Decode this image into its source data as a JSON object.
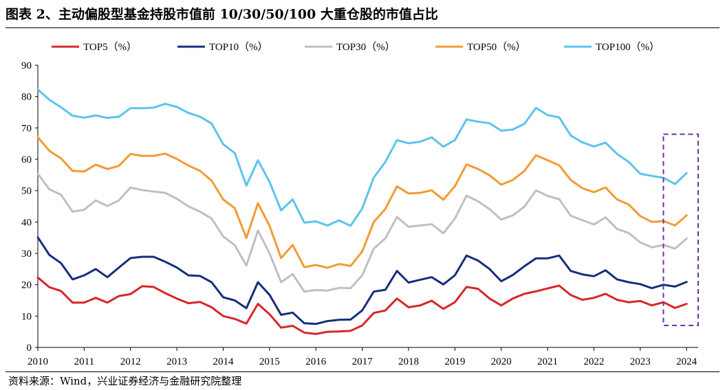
{
  "figure": {
    "title": "图表 2、主动偏股型基金持股市值前 10/30/50/100 大重仓股的市值占比",
    "source": "资料来源：Wind，兴业证券经济与金融研究院整理"
  },
  "chart_data": {
    "type": "line",
    "title": "",
    "xlabel": "",
    "ylabel": "",
    "ylim": [
      0,
      90
    ],
    "yticks": [
      0,
      10,
      20,
      30,
      40,
      50,
      60,
      70,
      80,
      90
    ],
    "xlim": [
      2010,
      2024.25
    ],
    "xticks": [
      "2010",
      "2011",
      "2012",
      "2013",
      "2014",
      "2015",
      "2016",
      "2017",
      "2018",
      "2019",
      "2020",
      "2021",
      "2022",
      "2023",
      "2024"
    ],
    "grid": false,
    "legend_position": "top",
    "highlight_box": {
      "x_from": 2023.5,
      "x_to": 2024.25,
      "y_from": 7,
      "y_to": 68,
      "color": "#7030A0",
      "style": "dashed"
    },
    "x": [
      2010.0,
      2010.25,
      2010.5,
      2010.75,
      2011.0,
      2011.25,
      2011.5,
      2011.75,
      2012.0,
      2012.25,
      2012.5,
      2012.75,
      2013.0,
      2013.25,
      2013.5,
      2013.75,
      2014.0,
      2014.25,
      2014.5,
      2014.75,
      2015.0,
      2015.25,
      2015.5,
      2015.75,
      2016.0,
      2016.25,
      2016.5,
      2016.75,
      2017.0,
      2017.25,
      2017.5,
      2017.75,
      2018.0,
      2018.25,
      2018.5,
      2018.75,
      2019.0,
      2019.25,
      2019.5,
      2019.75,
      2020.0,
      2020.25,
      2020.5,
      2020.75,
      2021.0,
      2021.25,
      2021.5,
      2021.75,
      2022.0,
      2022.25,
      2022.5,
      2022.75,
      2023.0,
      2023.25,
      2023.5,
      2023.75,
      2024.0
    ],
    "series": [
      {
        "name": "TOP5（%）",
        "color": "#D9252A",
        "values": [
          22.3,
          19.2,
          18.0,
          14.3,
          14.3,
          15.8,
          14.3,
          16.4,
          17.0,
          19.5,
          19.3,
          17.3,
          15.6,
          14.1,
          14.5,
          12.8,
          10.0,
          9.1,
          7.6,
          13.9,
          10.6,
          6.3,
          6.9,
          4.7,
          4.3,
          5.0,
          5.1,
          5.3,
          7.0,
          11.0,
          11.8,
          15.6,
          12.8,
          13.4,
          14.9,
          12.3,
          14.4,
          19.3,
          18.7,
          15.6,
          13.4,
          15.6,
          17.1,
          17.9,
          18.8,
          19.7,
          16.7,
          15.2,
          15.8,
          17.1,
          15.2,
          14.4,
          14.8,
          13.4,
          14.4,
          12.6,
          13.9
        ]
      },
      {
        "name": "TOP10（%）",
        "color": "#142E7A",
        "values": [
          35.1,
          29.5,
          26.9,
          21.7,
          23.0,
          25.0,
          22.4,
          25.5,
          28.5,
          28.9,
          28.9,
          27.3,
          25.5,
          23.0,
          22.8,
          20.8,
          16.0,
          15.0,
          12.5,
          20.8,
          16.8,
          10.4,
          11.1,
          7.7,
          7.5,
          8.4,
          8.8,
          8.9,
          11.8,
          17.8,
          18.4,
          24.4,
          20.7,
          21.6,
          22.4,
          20.1,
          23.0,
          29.3,
          27.7,
          25.0,
          21.1,
          23.1,
          25.9,
          28.4,
          28.4,
          29.3,
          24.4,
          23.3,
          22.7,
          24.6,
          21.7,
          20.8,
          20.2,
          18.9,
          20.0,
          19.4,
          20.9
        ]
      },
      {
        "name": "TOP30（%）",
        "color": "#BFBFBF",
        "values": [
          55.4,
          50.4,
          48.7,
          43.3,
          43.9,
          46.9,
          45.1,
          46.9,
          51.0,
          50.2,
          49.7,
          49.3,
          47.4,
          45.0,
          43.3,
          41.1,
          35.4,
          32.6,
          26.1,
          37.3,
          30.0,
          20.8,
          23.4,
          17.8,
          18.3,
          18.1,
          19.0,
          18.9,
          23.0,
          31.5,
          34.8,
          41.6,
          38.5,
          38.9,
          39.3,
          36.4,
          41.1,
          48.4,
          46.6,
          44.1,
          40.8,
          42.1,
          44.9,
          50.1,
          48.3,
          47.3,
          42.0,
          40.6,
          39.2,
          41.5,
          37.8,
          36.5,
          33.5,
          31.9,
          32.7,
          31.5,
          34.7
        ]
      },
      {
        "name": "TOP50（%）",
        "color": "#F39A33",
        "values": [
          67.0,
          62.7,
          60.3,
          56.3,
          56.1,
          58.3,
          56.9,
          57.9,
          61.7,
          61.1,
          61.1,
          61.8,
          60.1,
          58.0,
          56.3,
          53.2,
          47.2,
          44.4,
          34.9,
          46.0,
          38.8,
          28.5,
          32.7,
          25.6,
          26.3,
          25.4,
          26.6,
          26.0,
          30.6,
          40.0,
          44.2,
          51.4,
          49.1,
          49.3,
          50.1,
          47.1,
          51.4,
          58.4,
          56.9,
          54.9,
          51.9,
          53.4,
          56.3,
          61.3,
          59.7,
          58.1,
          53.4,
          50.8,
          49.5,
          51.0,
          47.2,
          45.6,
          41.9,
          40.0,
          40.3,
          38.9,
          42.1
        ]
      },
      {
        "name": "TOP100（%）",
        "color": "#5BC4EC",
        "values": [
          82.3,
          79.0,
          76.6,
          73.9,
          73.3,
          74.0,
          73.2,
          73.6,
          76.3,
          76.3,
          76.5,
          77.7,
          76.7,
          74.8,
          73.6,
          71.4,
          64.8,
          62.0,
          51.6,
          59.7,
          52.8,
          43.7,
          47.2,
          39.8,
          40.2,
          38.9,
          40.5,
          38.8,
          44.3,
          54.2,
          59.2,
          66.1,
          65.1,
          65.6,
          67.0,
          64.0,
          66.1,
          72.7,
          72.0,
          71.5,
          69.1,
          69.5,
          71.3,
          76.4,
          74.1,
          73.4,
          67.6,
          65.4,
          64.1,
          65.3,
          61.7,
          59.2,
          55.4,
          54.7,
          54.1,
          52.1,
          55.6
        ]
      }
    ]
  }
}
